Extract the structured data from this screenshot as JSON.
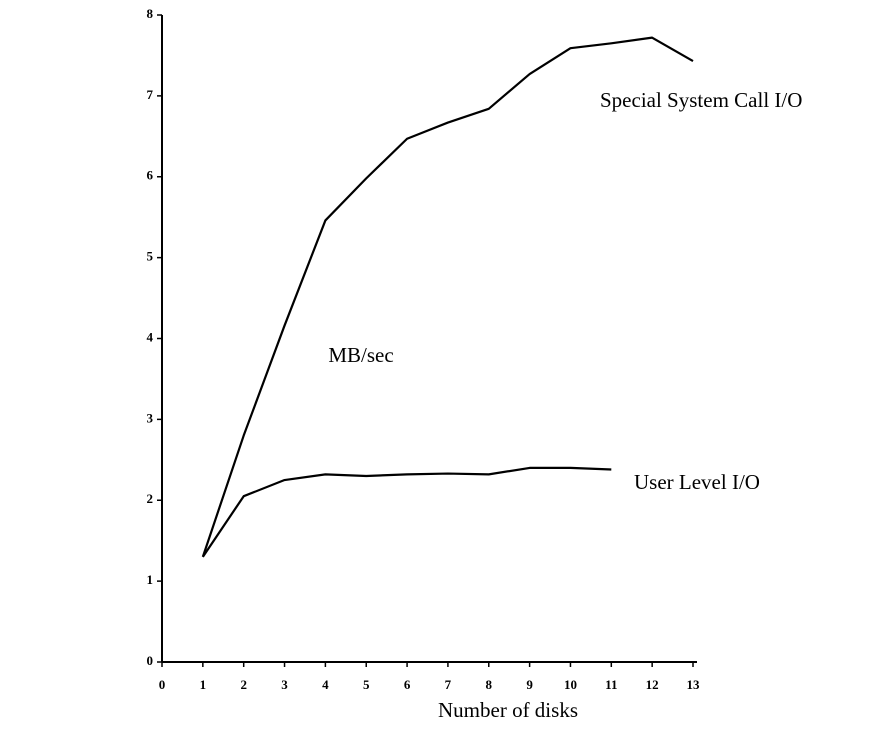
{
  "chart_data": {
    "type": "line",
    "x_label": "Number of disks",
    "y_label": "MB/sec",
    "x": [
      1,
      2,
      3,
      4,
      5,
      6,
      7,
      8,
      9,
      10,
      11,
      12,
      13
    ],
    "series": [
      {
        "name": "Special System Call I/O",
        "color": "#000000",
        "values": [
          1.3,
          2.8,
          4.16,
          5.46,
          5.98,
          6.47,
          6.67,
          6.84,
          7.27,
          7.59,
          7.65,
          7.72,
          7.43
        ]
      },
      {
        "name": "User Level I/O",
        "color": "#000000",
        "values": [
          1.3,
          2.05,
          2.25,
          2.32,
          2.3,
          2.32,
          2.33,
          2.32,
          2.4,
          2.4,
          2.38,
          null,
          null
        ]
      }
    ],
    "xlim": [
      0,
      13
    ],
    "ylim": [
      0,
      8
    ],
    "xticks": [
      0,
      1,
      2,
      3,
      4,
      5,
      6,
      7,
      8,
      9,
      10,
      11,
      12,
      13
    ],
    "yticks": [
      0,
      1,
      2,
      3,
      4,
      5,
      6,
      7,
      8
    ]
  }
}
